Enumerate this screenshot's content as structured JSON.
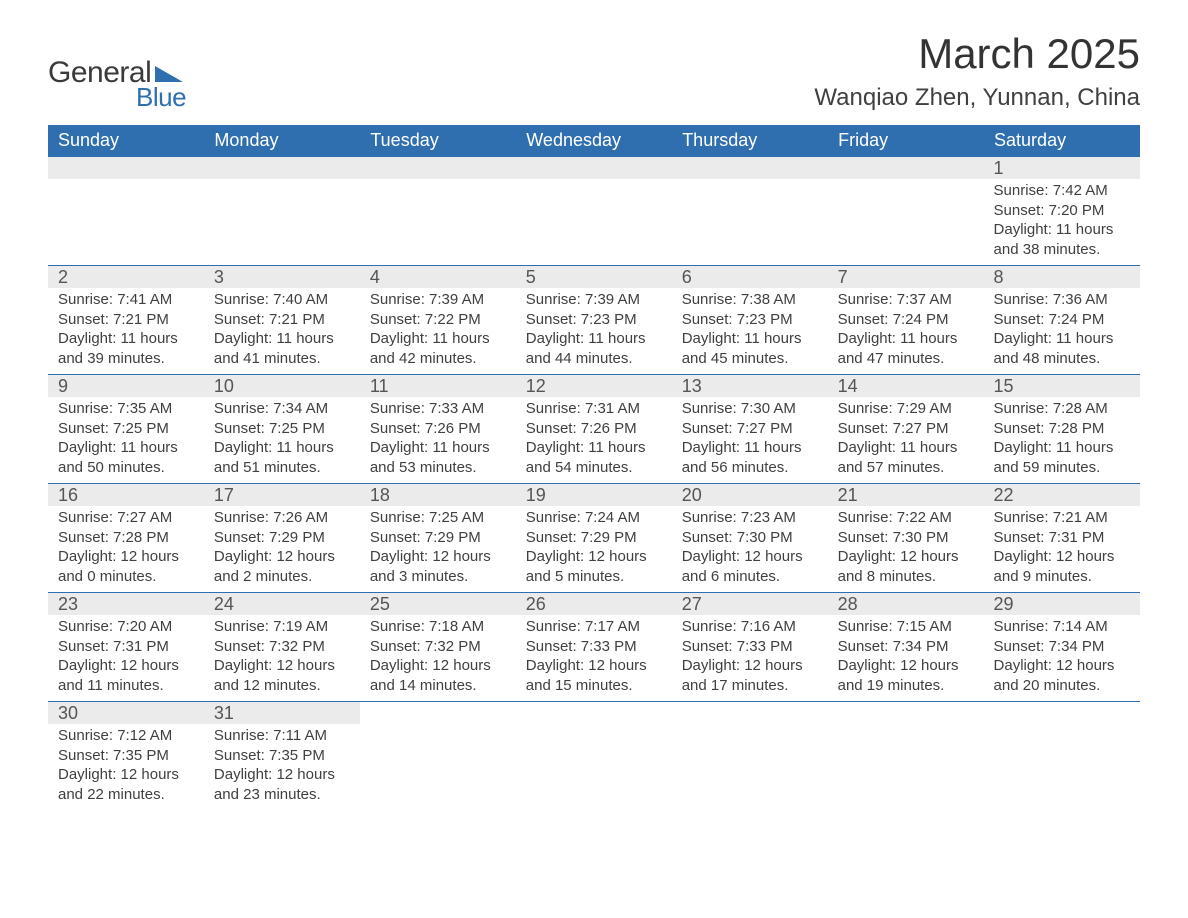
{
  "logo": {
    "word1": "General",
    "word2": "Blue",
    "shape_color": "#2f6fb0"
  },
  "title": "March 2025",
  "location": "Wanqiao Zhen, Yunnan, China",
  "colors": {
    "header_bg": "#2f6fb0",
    "header_text": "#ffffff",
    "daynum_bg": "#ebebeb",
    "border": "#2f6fb0",
    "text": "#404040"
  },
  "weekdays": [
    "Sunday",
    "Monday",
    "Tuesday",
    "Wednesday",
    "Thursday",
    "Friday",
    "Saturday"
  ],
  "weeks": [
    [
      null,
      null,
      null,
      null,
      null,
      null,
      {
        "n": "1",
        "sr": "Sunrise: 7:42 AM",
        "ss": "Sunset: 7:20 PM",
        "d1": "Daylight: 11 hours",
        "d2": "and 38 minutes."
      }
    ],
    [
      {
        "n": "2",
        "sr": "Sunrise: 7:41 AM",
        "ss": "Sunset: 7:21 PM",
        "d1": "Daylight: 11 hours",
        "d2": "and 39 minutes."
      },
      {
        "n": "3",
        "sr": "Sunrise: 7:40 AM",
        "ss": "Sunset: 7:21 PM",
        "d1": "Daylight: 11 hours",
        "d2": "and 41 minutes."
      },
      {
        "n": "4",
        "sr": "Sunrise: 7:39 AM",
        "ss": "Sunset: 7:22 PM",
        "d1": "Daylight: 11 hours",
        "d2": "and 42 minutes."
      },
      {
        "n": "5",
        "sr": "Sunrise: 7:39 AM",
        "ss": "Sunset: 7:23 PM",
        "d1": "Daylight: 11 hours",
        "d2": "and 44 minutes."
      },
      {
        "n": "6",
        "sr": "Sunrise: 7:38 AM",
        "ss": "Sunset: 7:23 PM",
        "d1": "Daylight: 11 hours",
        "d2": "and 45 minutes."
      },
      {
        "n": "7",
        "sr": "Sunrise: 7:37 AM",
        "ss": "Sunset: 7:24 PM",
        "d1": "Daylight: 11 hours",
        "d2": "and 47 minutes."
      },
      {
        "n": "8",
        "sr": "Sunrise: 7:36 AM",
        "ss": "Sunset: 7:24 PM",
        "d1": "Daylight: 11 hours",
        "d2": "and 48 minutes."
      }
    ],
    [
      {
        "n": "9",
        "sr": "Sunrise: 7:35 AM",
        "ss": "Sunset: 7:25 PM",
        "d1": "Daylight: 11 hours",
        "d2": "and 50 minutes."
      },
      {
        "n": "10",
        "sr": "Sunrise: 7:34 AM",
        "ss": "Sunset: 7:25 PM",
        "d1": "Daylight: 11 hours",
        "d2": "and 51 minutes."
      },
      {
        "n": "11",
        "sr": "Sunrise: 7:33 AM",
        "ss": "Sunset: 7:26 PM",
        "d1": "Daylight: 11 hours",
        "d2": "and 53 minutes."
      },
      {
        "n": "12",
        "sr": "Sunrise: 7:31 AM",
        "ss": "Sunset: 7:26 PM",
        "d1": "Daylight: 11 hours",
        "d2": "and 54 minutes."
      },
      {
        "n": "13",
        "sr": "Sunrise: 7:30 AM",
        "ss": "Sunset: 7:27 PM",
        "d1": "Daylight: 11 hours",
        "d2": "and 56 minutes."
      },
      {
        "n": "14",
        "sr": "Sunrise: 7:29 AM",
        "ss": "Sunset: 7:27 PM",
        "d1": "Daylight: 11 hours",
        "d2": "and 57 minutes."
      },
      {
        "n": "15",
        "sr": "Sunrise: 7:28 AM",
        "ss": "Sunset: 7:28 PM",
        "d1": "Daylight: 11 hours",
        "d2": "and 59 minutes."
      }
    ],
    [
      {
        "n": "16",
        "sr": "Sunrise: 7:27 AM",
        "ss": "Sunset: 7:28 PM",
        "d1": "Daylight: 12 hours",
        "d2": "and 0 minutes."
      },
      {
        "n": "17",
        "sr": "Sunrise: 7:26 AM",
        "ss": "Sunset: 7:29 PM",
        "d1": "Daylight: 12 hours",
        "d2": "and 2 minutes."
      },
      {
        "n": "18",
        "sr": "Sunrise: 7:25 AM",
        "ss": "Sunset: 7:29 PM",
        "d1": "Daylight: 12 hours",
        "d2": "and 3 minutes."
      },
      {
        "n": "19",
        "sr": "Sunrise: 7:24 AM",
        "ss": "Sunset: 7:29 PM",
        "d1": "Daylight: 12 hours",
        "d2": "and 5 minutes."
      },
      {
        "n": "20",
        "sr": "Sunrise: 7:23 AM",
        "ss": "Sunset: 7:30 PM",
        "d1": "Daylight: 12 hours",
        "d2": "and 6 minutes."
      },
      {
        "n": "21",
        "sr": "Sunrise: 7:22 AM",
        "ss": "Sunset: 7:30 PM",
        "d1": "Daylight: 12 hours",
        "d2": "and 8 minutes."
      },
      {
        "n": "22",
        "sr": "Sunrise: 7:21 AM",
        "ss": "Sunset: 7:31 PM",
        "d1": "Daylight: 12 hours",
        "d2": "and 9 minutes."
      }
    ],
    [
      {
        "n": "23",
        "sr": "Sunrise: 7:20 AM",
        "ss": "Sunset: 7:31 PM",
        "d1": "Daylight: 12 hours",
        "d2": "and 11 minutes."
      },
      {
        "n": "24",
        "sr": "Sunrise: 7:19 AM",
        "ss": "Sunset: 7:32 PM",
        "d1": "Daylight: 12 hours",
        "d2": "and 12 minutes."
      },
      {
        "n": "25",
        "sr": "Sunrise: 7:18 AM",
        "ss": "Sunset: 7:32 PM",
        "d1": "Daylight: 12 hours",
        "d2": "and 14 minutes."
      },
      {
        "n": "26",
        "sr": "Sunrise: 7:17 AM",
        "ss": "Sunset: 7:33 PM",
        "d1": "Daylight: 12 hours",
        "d2": "and 15 minutes."
      },
      {
        "n": "27",
        "sr": "Sunrise: 7:16 AM",
        "ss": "Sunset: 7:33 PM",
        "d1": "Daylight: 12 hours",
        "d2": "and 17 minutes."
      },
      {
        "n": "28",
        "sr": "Sunrise: 7:15 AM",
        "ss": "Sunset: 7:34 PM",
        "d1": "Daylight: 12 hours",
        "d2": "and 19 minutes."
      },
      {
        "n": "29",
        "sr": "Sunrise: 7:14 AM",
        "ss": "Sunset: 7:34 PM",
        "d1": "Daylight: 12 hours",
        "d2": "and 20 minutes."
      }
    ],
    [
      {
        "n": "30",
        "sr": "Sunrise: 7:12 AM",
        "ss": "Sunset: 7:35 PM",
        "d1": "Daylight: 12 hours",
        "d2": "and 22 minutes."
      },
      {
        "n": "31",
        "sr": "Sunrise: 7:11 AM",
        "ss": "Sunset: 7:35 PM",
        "d1": "Daylight: 12 hours",
        "d2": "and 23 minutes."
      },
      null,
      null,
      null,
      null,
      null
    ]
  ]
}
